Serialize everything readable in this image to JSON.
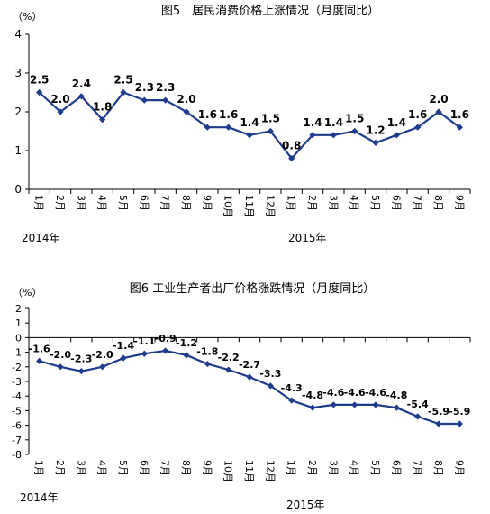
{
  "colors": {
    "line": "#1f3b8c",
    "axis": "#000000",
    "text": "#000000"
  },
  "chart_data": [
    {
      "type": "line",
      "title": "图5　居民消费价格上涨情况（月度同比）",
      "unit": "（%）",
      "categories": [
        "1月",
        "2月",
        "3月",
        "4月",
        "5月",
        "6月",
        "7月",
        "8月",
        "9月",
        "10月",
        "11月",
        "12月",
        "1月",
        "2月",
        "3月",
        "4月",
        "5月",
        "6月",
        "7月",
        "8月",
        "9月"
      ],
      "year_labels": [
        "2014年",
        "2015年"
      ],
      "series": [
        {
          "values": [
            2.5,
            2.0,
            2.4,
            1.8,
            2.5,
            2.3,
            2.3,
            2.0,
            1.6,
            1.6,
            1.4,
            1.5,
            0.8,
            1.4,
            1.4,
            1.5,
            1.2,
            1.4,
            1.6,
            2.0,
            1.6
          ]
        }
      ],
      "data_labels": [
        "2.5",
        "2.0",
        "2.4",
        "1.8",
        "2.5",
        "2.3",
        "2.3",
        "2.0",
        "1.6",
        "1.6",
        "1.4",
        "1.5",
        "0.8",
        "1.4",
        "1.4",
        "1.5",
        "1.2",
        "1.4",
        "1.6",
        "2.0",
        "1.6"
      ],
      "ylim": [
        0,
        4
      ],
      "yticks": [
        "0",
        "1",
        "2",
        "3",
        "4"
      ],
      "grid": false,
      "legend": "none"
    },
    {
      "type": "line",
      "title": "图6 工业生产者出厂价格涨跌情况（月度同比）",
      "unit": "（%）",
      "categories": [
        "1月",
        "2月",
        "3月",
        "4月",
        "5月",
        "6月",
        "7月",
        "8月",
        "9月",
        "10月",
        "11月",
        "12月",
        "1月",
        "2月",
        "3月",
        "4月",
        "5月",
        "6月",
        "7月",
        "8月",
        "9月"
      ],
      "year_labels": [
        "2014年",
        "2015年"
      ],
      "series": [
        {
          "values": [
            -1.6,
            -2.0,
            -2.3,
            -2.0,
            -1.4,
            -1.1,
            -0.9,
            -1.2,
            -1.8,
            -2.2,
            -2.7,
            -3.3,
            -4.3,
            -4.8,
            -4.6,
            -4.6,
            -4.6,
            -4.8,
            -5.4,
            -5.9,
            -5.9
          ]
        }
      ],
      "data_labels": [
        "-1.6",
        "-2.0",
        "-2.3",
        "-2.0",
        "-1.4",
        "-1.1",
        "-0.9",
        "-1.2",
        "-1.8",
        "-2.2",
        "-2.7",
        "-3.3",
        "-4.3",
        "-4.8",
        "-4.6",
        "-4.6",
        "-4.6",
        "-4.8",
        "-5.4",
        "-5.9",
        "-5.9"
      ],
      "ylim": [
        -8,
        2
      ],
      "yticks": [
        "-8",
        "-7",
        "-6",
        "-5",
        "-4",
        "-3",
        "-2",
        "-1",
        "0",
        "1",
        "2"
      ],
      "grid": false,
      "legend": "none"
    }
  ]
}
